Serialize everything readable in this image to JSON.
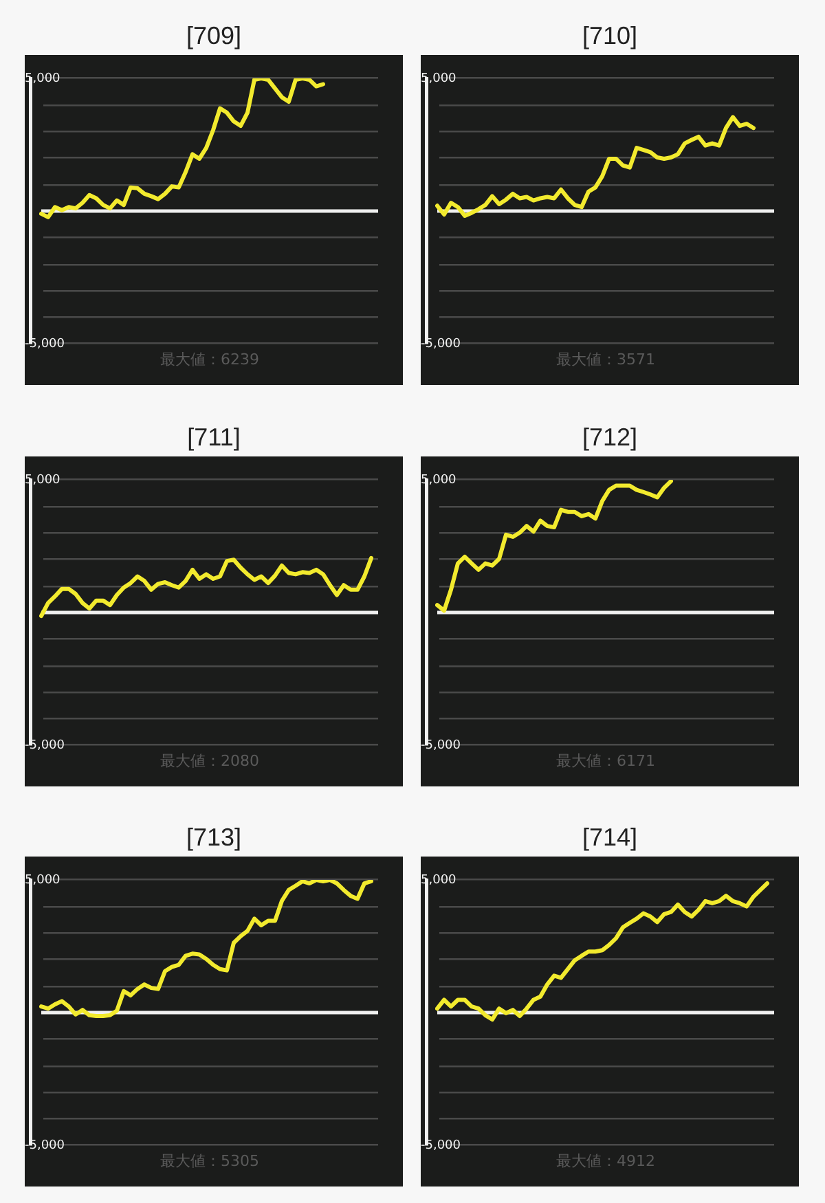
{
  "chart_data": [
    {
      "type": "line",
      "title": "[709]",
      "annotations": [
        "最大値：6239"
      ],
      "marker": "none",
      "grid": "y",
      "ylim": [
        -5000,
        5000
      ],
      "yticks": [
        {
          "value": -5000,
          "label": "-5,000"
        },
        {
          "value": -4000,
          "label": null
        },
        {
          "value": -3000,
          "label": null
        },
        {
          "value": -2000,
          "label": null
        },
        {
          "value": -1000,
          "label": null
        },
        {
          "value": 0,
          "label": null
        },
        {
          "value": 1000,
          "label": null
        },
        {
          "value": 2000,
          "label": null
        },
        {
          "value": 3000,
          "label": null
        },
        {
          "value": 4000,
          "label": null
        },
        {
          "value": 5000,
          "label": "5,000"
        }
      ],
      "ref_lines": [
        {
          "axis": "y",
          "value": 0,
          "color": "#f0f0f0"
        }
      ],
      "color": "#f2ea2e",
      "categories": [
        null,
        null,
        null,
        null,
        null,
        null,
        null,
        null,
        null,
        null,
        null,
        null,
        null,
        null,
        null,
        null,
        null,
        null,
        null,
        null,
        null,
        null,
        null,
        null,
        null,
        null,
        null,
        null,
        null,
        null,
        null,
        null,
        null,
        null,
        null,
        null,
        null,
        null,
        null,
        null,
        null,
        null,
        null,
        null,
        null,
        null,
        null,
        null,
        null,
        null
      ],
      "values": [
        -100,
        -230,
        150,
        30,
        150,
        100,
        310,
        600,
        480,
        230,
        100,
        400,
        230,
        890,
        860,
        650,
        560,
        450,
        650,
        930,
        890,
        1470,
        2140,
        1970,
        2380,
        3050,
        3870,
        3710,
        3380,
        3210,
        3710,
        4950,
        5000,
        4950,
        4620,
        4290,
        4120,
        4950,
        5000,
        4950,
        4700,
        4780,
        null,
        null,
        null,
        null,
        null,
        null,
        null,
        null
      ]
    },
    {
      "type": "line",
      "title": "[710]",
      "annotations": [
        "最大値：3571"
      ],
      "marker": "none",
      "grid": "y",
      "ylim": [
        -5000,
        5000
      ],
      "yticks": [
        {
          "value": -5000,
          "label": "-5,000"
        },
        {
          "value": -4000,
          "label": null
        },
        {
          "value": -3000,
          "label": null
        },
        {
          "value": -2000,
          "label": null
        },
        {
          "value": -1000,
          "label": null
        },
        {
          "value": 0,
          "label": null
        },
        {
          "value": 1000,
          "label": null
        },
        {
          "value": 2000,
          "label": null
        },
        {
          "value": 3000,
          "label": null
        },
        {
          "value": 4000,
          "label": null
        },
        {
          "value": 5000,
          "label": "5,000"
        }
      ],
      "ref_lines": [
        {
          "axis": "y",
          "value": 0,
          "color": "#f0f0f0"
        }
      ],
      "color": "#f2ea2e",
      "categories": [
        null,
        null,
        null,
        null,
        null,
        null,
        null,
        null,
        null,
        null,
        null,
        null,
        null,
        null,
        null,
        null,
        null,
        null,
        null,
        null,
        null,
        null,
        null,
        null,
        null,
        null,
        null,
        null,
        null,
        null,
        null,
        null,
        null,
        null,
        null,
        null,
        null,
        null,
        null,
        null,
        null,
        null,
        null,
        null,
        null,
        null,
        null,
        null,
        null,
        null
      ],
      "values": [
        200,
        -130,
        310,
        150,
        -180,
        -70,
        70,
        230,
        560,
        260,
        430,
        650,
        480,
        530,
        400,
        480,
        530,
        480,
        810,
        480,
        230,
        150,
        730,
        890,
        1310,
        1970,
        1970,
        1720,
        1640,
        2380,
        2300,
        2220,
        2020,
        1970,
        2020,
        2140,
        2550,
        2680,
        2800,
        2470,
        2550,
        2470,
        3130,
        3540,
        3210,
        3290,
        3130,
        null,
        null,
        null
      ]
    },
    {
      "type": "line",
      "title": "[711]",
      "annotations": [
        "最大値：2080"
      ],
      "marker": "none",
      "grid": "y",
      "ylim": [
        -5000,
        5000
      ],
      "yticks": [
        {
          "value": -5000,
          "label": "-5,000"
        },
        {
          "value": -4000,
          "label": null
        },
        {
          "value": -3000,
          "label": null
        },
        {
          "value": -2000,
          "label": null
        },
        {
          "value": -1000,
          "label": null
        },
        {
          "value": 0,
          "label": null
        },
        {
          "value": 1000,
          "label": null
        },
        {
          "value": 2000,
          "label": null
        },
        {
          "value": 3000,
          "label": null
        },
        {
          "value": 4000,
          "label": null
        },
        {
          "value": 5000,
          "label": "5,000"
        }
      ],
      "ref_lines": [
        {
          "axis": "y",
          "value": 0,
          "color": "#f0f0f0"
        }
      ],
      "color": "#f2ea2e",
      "categories": [
        null,
        null,
        null,
        null,
        null,
        null,
        null,
        null,
        null,
        null,
        null,
        null,
        null,
        null,
        null,
        null,
        null,
        null,
        null,
        null,
        null,
        null,
        null,
        null,
        null,
        null,
        null,
        null,
        null,
        null,
        null,
        null,
        null,
        null,
        null,
        null,
        null,
        null,
        null,
        null,
        null,
        null,
        null,
        null,
        null,
        null,
        null,
        null,
        null,
        null
      ],
      "values": [
        -130,
        360,
        610,
        890,
        890,
        700,
        360,
        150,
        450,
        450,
        280,
        660,
        940,
        1110,
        1360,
        1190,
        860,
        1080,
        1140,
        1030,
        940,
        1190,
        1610,
        1270,
        1440,
        1270,
        1360,
        1940,
        1990,
        1690,
        1440,
        1230,
        1360,
        1110,
        1390,
        1770,
        1490,
        1440,
        1520,
        1490,
        1610,
        1440,
        1030,
        660,
        1030,
        860,
        860,
        1360,
        2050,
        null
      ]
    },
    {
      "type": "line",
      "title": "[712]",
      "annotations": [
        "最大値：6171"
      ],
      "marker": "none",
      "grid": "y",
      "ylim": [
        -5000,
        5000
      ],
      "yticks": [
        {
          "value": -5000,
          "label": "-5,000"
        },
        {
          "value": -4000,
          "label": null
        },
        {
          "value": -3000,
          "label": null
        },
        {
          "value": -2000,
          "label": null
        },
        {
          "value": -1000,
          "label": null
        },
        {
          "value": 0,
          "label": null
        },
        {
          "value": 1000,
          "label": null
        },
        {
          "value": 2000,
          "label": null
        },
        {
          "value": 3000,
          "label": null
        },
        {
          "value": 4000,
          "label": null
        },
        {
          "value": 5000,
          "label": "5,000"
        }
      ],
      "ref_lines": [
        {
          "axis": "y",
          "value": 0,
          "color": "#f0f0f0"
        }
      ],
      "color": "#f2ea2e",
      "categories": [
        null,
        null,
        null,
        null,
        null,
        null,
        null,
        null,
        null,
        null,
        null,
        null,
        null,
        null,
        null,
        null,
        null,
        null,
        null,
        null,
        null,
        null,
        null,
        null,
        null,
        null,
        null,
        null,
        null,
        null,
        null,
        null,
        null,
        null,
        null,
        null,
        null,
        null,
        null,
        null,
        null,
        null,
        null,
        null,
        null,
        null,
        null,
        null,
        null,
        null
      ],
      "values": [
        280,
        70,
        860,
        1850,
        2100,
        1850,
        1610,
        1850,
        1770,
        2020,
        2930,
        2850,
        3010,
        3260,
        3050,
        3460,
        3260,
        3210,
        3870,
        3790,
        3790,
        3630,
        3710,
        3540,
        4200,
        4620,
        4780,
        4780,
        4780,
        4620,
        4540,
        4450,
        4340,
        4700,
        4950,
        null,
        null,
        null,
        null,
        null,
        null,
        null,
        null,
        null,
        null,
        null,
        null,
        null,
        null,
        null
      ]
    },
    {
      "type": "line",
      "title": "[713]",
      "annotations": [
        "最大値：5305"
      ],
      "marker": "none",
      "grid": "y",
      "ylim": [
        -5000,
        5000
      ],
      "yticks": [
        {
          "value": -5000,
          "label": "-5,000"
        },
        {
          "value": -4000,
          "label": null
        },
        {
          "value": -3000,
          "label": null
        },
        {
          "value": -2000,
          "label": null
        },
        {
          "value": -1000,
          "label": null
        },
        {
          "value": 0,
          "label": null
        },
        {
          "value": 1000,
          "label": null
        },
        {
          "value": 2000,
          "label": null
        },
        {
          "value": 3000,
          "label": null
        },
        {
          "value": 4000,
          "label": null
        },
        {
          "value": 5000,
          "label": "5,000"
        }
      ],
      "ref_lines": [
        {
          "axis": "y",
          "value": 0,
          "color": "#f0f0f0"
        }
      ],
      "color": "#f2ea2e",
      "categories": [
        null,
        null,
        null,
        null,
        null,
        null,
        null,
        null,
        null,
        null,
        null,
        null,
        null,
        null,
        null,
        null,
        null,
        null,
        null,
        null,
        null,
        null,
        null,
        null,
        null,
        null,
        null,
        null,
        null,
        null,
        null,
        null,
        null,
        null,
        null,
        null,
        null,
        null,
        null,
        null,
        null,
        null,
        null,
        null,
        null,
        null,
        null,
        null,
        null,
        null
      ],
      "values": [
        230,
        150,
        310,
        430,
        230,
        -70,
        100,
        -100,
        -130,
        -130,
        -100,
        70,
        810,
        650,
        890,
        1060,
        930,
        890,
        1560,
        1720,
        1800,
        2140,
        2220,
        2190,
        2020,
        1800,
        1640,
        1590,
        2630,
        2880,
        3080,
        3540,
        3290,
        3460,
        3460,
        4210,
        4620,
        4780,
        4950,
        4870,
        5000,
        4950,
        5000,
        4870,
        4620,
        4400,
        4290,
        4870,
        4950,
        null
      ]
    },
    {
      "type": "line",
      "title": "[714]",
      "annotations": [
        "最大値：4912"
      ],
      "marker": "none",
      "grid": "y",
      "ylim": [
        -5000,
        5000
      ],
      "yticks": [
        {
          "value": -5000,
          "label": "-5,000"
        },
        {
          "value": -4000,
          "label": null
        },
        {
          "value": -3000,
          "label": null
        },
        {
          "value": -2000,
          "label": null
        },
        {
          "value": -1000,
          "label": null
        },
        {
          "value": 0,
          "label": null
        },
        {
          "value": 1000,
          "label": null
        },
        {
          "value": 2000,
          "label": null
        },
        {
          "value": 3000,
          "label": null
        },
        {
          "value": 4000,
          "label": null
        },
        {
          "value": 5000,
          "label": "5,000"
        }
      ],
      "ref_lines": [
        {
          "axis": "y",
          "value": 0,
          "color": "#f0f0f0"
        }
      ],
      "color": "#f2ea2e",
      "categories": [
        null,
        null,
        null,
        null,
        null,
        null,
        null,
        null,
        null,
        null,
        null,
        null,
        null,
        null,
        null,
        null,
        null,
        null,
        null,
        null,
        null,
        null,
        null,
        null,
        null,
        null,
        null,
        null,
        null,
        null,
        null,
        null,
        null,
        null,
        null,
        null,
        null,
        null,
        null,
        null,
        null,
        null,
        null,
        null,
        null,
        null,
        null,
        null,
        null,
        null
      ],
      "values": [
        150,
        480,
        230,
        480,
        480,
        230,
        150,
        -100,
        -260,
        150,
        -20,
        100,
        -130,
        150,
        480,
        600,
        1060,
        1390,
        1310,
        1640,
        1970,
        2140,
        2300,
        2300,
        2350,
        2550,
        2800,
        3210,
        3380,
        3540,
        3740,
        3620,
        3410,
        3710,
        3790,
        4070,
        3790,
        3620,
        3870,
        4200,
        4120,
        4200,
        4400,
        4200,
        4120,
        4000,
        4370,
        4620,
        4870,
        null
      ]
    }
  ]
}
